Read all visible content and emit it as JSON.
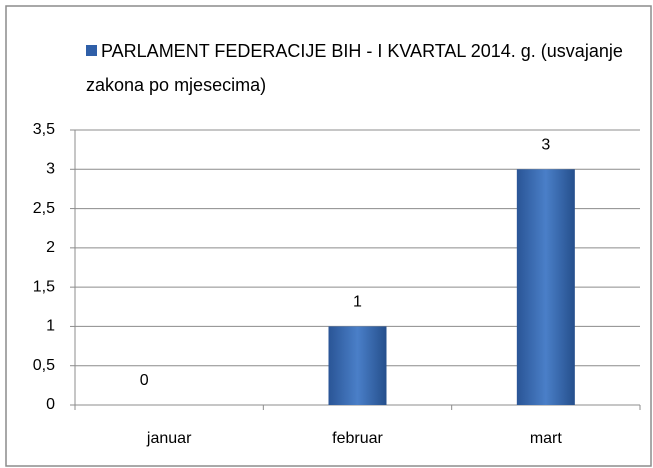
{
  "chart_data": {
    "type": "bar",
    "categories": [
      "januar",
      "februar",
      "mart"
    ],
    "series": [
      {
        "name": "PARLAMENT FEDERACIJE BIH - I KVARTAL 2014. g. (usvajanje zakona po mjesecima)",
        "color": "#2f5fa8",
        "values": [
          0,
          1,
          3
        ]
      }
    ],
    "ylim": [
      0,
      3.5
    ],
    "yticks": [
      0,
      {
        "value": 0.5,
        "label": "0,5"
      },
      1,
      {
        "value": 1.5,
        "label": "1,5"
      },
      2,
      {
        "value": 2.5,
        "label": "2,5"
      },
      3,
      {
        "value": 3.5,
        "label": "3,5"
      }
    ],
    "grid": true,
    "legend": "top"
  }
}
